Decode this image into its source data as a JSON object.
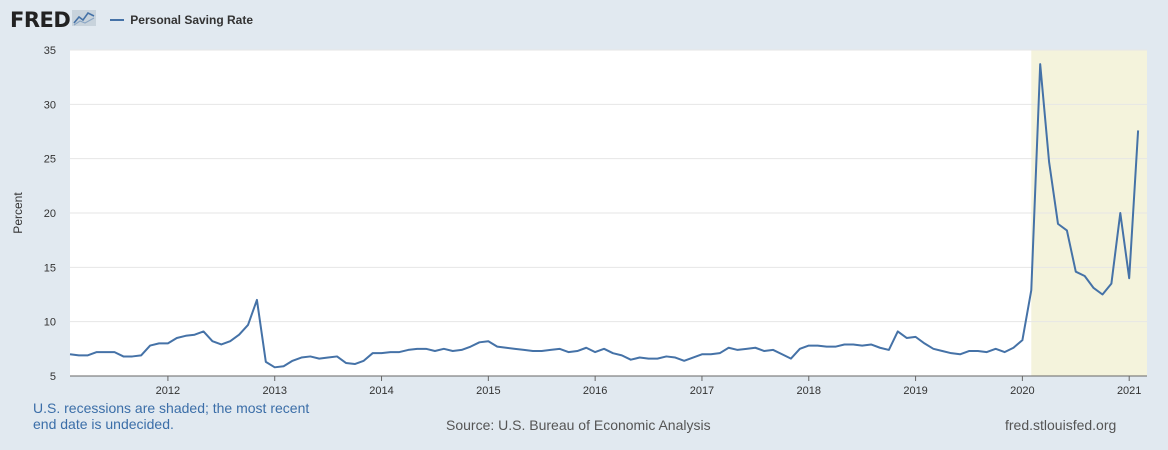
{
  "header": {
    "logo_text": "FRED",
    "logo_icon": "fred-chart-icon"
  },
  "chart_data": {
    "type": "line",
    "title": "",
    "ylabel": "Percent",
    "ylim": [
      5,
      35
    ],
    "yticks": [
      5,
      10,
      15,
      20,
      25,
      30,
      35
    ],
    "xlim": [
      2011.0833,
      2021.1667
    ],
    "xticks": [
      2012,
      2013,
      2014,
      2015,
      2016,
      2017,
      2018,
      2019,
      2020,
      2021
    ],
    "xtick_labels": [
      "2012",
      "2013",
      "2014",
      "2015",
      "2016",
      "2017",
      "2018",
      "2019",
      "2020",
      "2021"
    ],
    "grid": true,
    "legend_position": "top-left",
    "recession_shading": [
      {
        "start": 2020.0833,
        "end": 2021.1667
      }
    ],
    "series": [
      {
        "name": "Personal Saving Rate",
        "color": "#4572a7",
        "start": "2011-02",
        "frequency": "monthly",
        "values": [
          7.0,
          6.9,
          6.9,
          7.2,
          7.2,
          7.2,
          6.8,
          6.8,
          6.9,
          7.8,
          8.0,
          8.0,
          8.5,
          8.7,
          8.8,
          9.1,
          8.2,
          7.9,
          8.2,
          8.8,
          9.7,
          12.0,
          6.3,
          5.8,
          5.9,
          6.4,
          6.7,
          6.8,
          6.6,
          6.7,
          6.8,
          6.2,
          6.1,
          6.4,
          7.1,
          7.1,
          7.2,
          7.2,
          7.4,
          7.5,
          7.5,
          7.3,
          7.5,
          7.3,
          7.4,
          7.7,
          8.1,
          8.2,
          7.7,
          7.6,
          7.5,
          7.4,
          7.3,
          7.3,
          7.4,
          7.5,
          7.2,
          7.3,
          7.6,
          7.2,
          7.5,
          7.1,
          6.9,
          6.5,
          6.7,
          6.6,
          6.6,
          6.8,
          6.7,
          6.4,
          6.7,
          7.0,
          7.0,
          7.1,
          7.6,
          7.4,
          7.5,
          7.6,
          7.3,
          7.4,
          7.0,
          6.6,
          7.5,
          7.8,
          7.8,
          7.7,
          7.7,
          7.9,
          7.9,
          7.8,
          7.9,
          7.6,
          7.4,
          9.1,
          8.5,
          8.6,
          8.0,
          7.5,
          7.3,
          7.1,
          7.0,
          7.3,
          7.3,
          7.2,
          7.5,
          7.2,
          7.6,
          8.3,
          12.9,
          33.7,
          24.7,
          19.0,
          18.4,
          14.6,
          14.2,
          13.1,
          12.5,
          13.5,
          20.0,
          14.0,
          27.6
        ]
      }
    ]
  },
  "footer": {
    "recession_note_line1": "U.S. recessions are shaded; the most recent",
    "recession_note_line2": "end date is undecided.",
    "source": "Source: U.S. Bureau of Economic Analysis",
    "url": "fred.stlouisfed.org"
  }
}
